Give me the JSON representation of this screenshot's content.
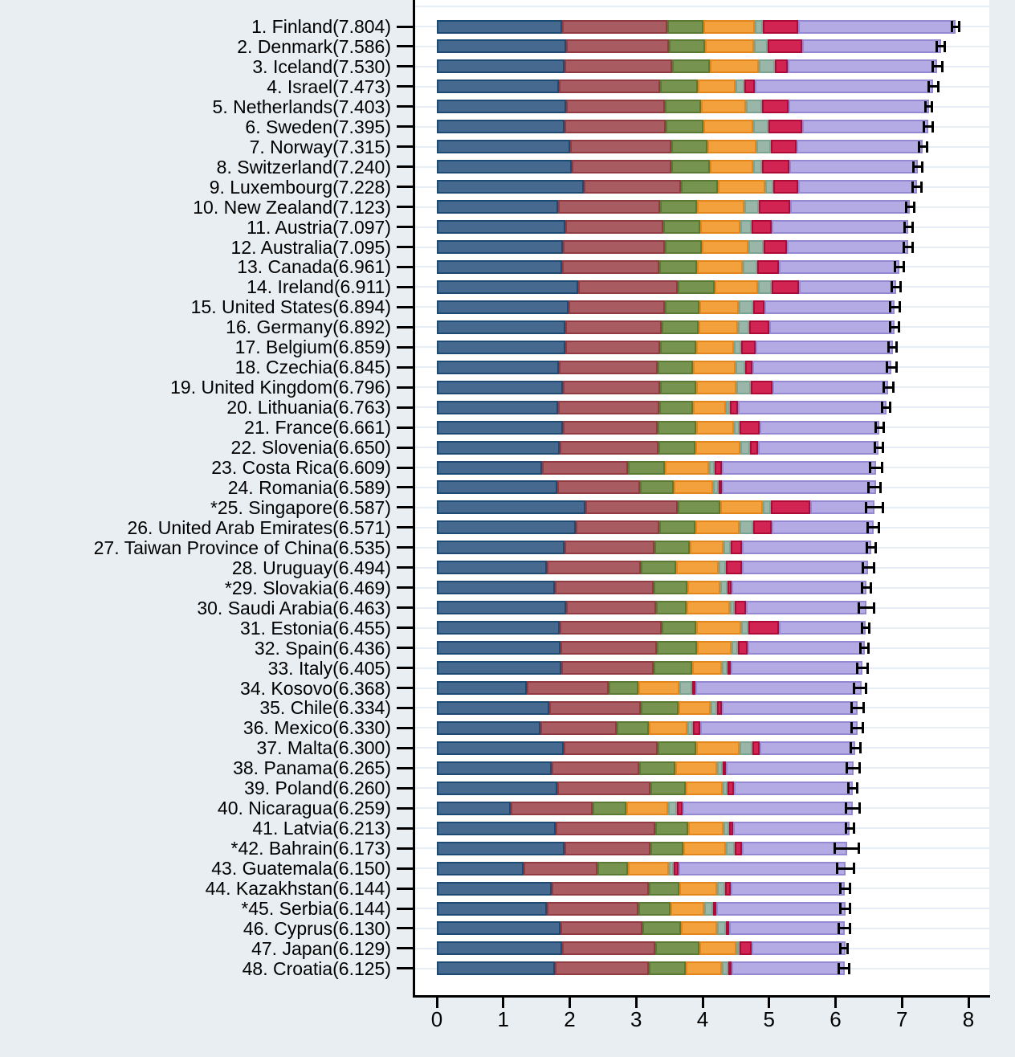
{
  "chart_data": {
    "type": "bar",
    "orientation": "horizontal",
    "stacked": true,
    "title": "",
    "xlabel": "",
    "ylabel": "",
    "xlim": [
      0,
      8.3
    ],
    "x_ticks": [
      "0",
      "1",
      "2",
      "3",
      "4",
      "5",
      "6",
      "7",
      "8"
    ],
    "x_tick_values": [
      0,
      1,
      2,
      3,
      4,
      5,
      6,
      7,
      8
    ],
    "grid": "horizontal-light",
    "legend_position": "none",
    "error_bars": true,
    "series": [
      {
        "name": "segment-navy",
        "fill": "#46698f",
        "border": "#1c4a72"
      },
      {
        "name": "segment-maroon",
        "fill": "#a85b61",
        "border": "#913a42"
      },
      {
        "name": "segment-green",
        "fill": "#76934f",
        "border": "#5a7a33"
      },
      {
        "name": "segment-orange",
        "fill": "#f3a13d",
        "border": "#e2861c"
      },
      {
        "name": "segment-teal",
        "fill": "#9ab6a9",
        "border": "#7ba391"
      },
      {
        "name": "segment-crimson",
        "fill": "#d22453",
        "border": "#ad0a38"
      },
      {
        "name": "segment-lavender",
        "fill": "#b5abe4",
        "border": "#9488d2"
      }
    ],
    "countries": [
      {
        "label": "1. Finland(7.804)",
        "score": 7.804,
        "values": [
          1.888,
          1.585,
          0.535,
          0.772,
          0.126,
          0.535,
          2.363
        ],
        "ci_halfwidth": 0.075
      },
      {
        "label": "2. Denmark(7.586)",
        "score": 7.586,
        "values": [
          1.949,
          1.548,
          0.537,
          0.734,
          0.208,
          0.525,
          2.085
        ],
        "ci_halfwidth": 0.08
      },
      {
        "label": "3. Iceland(7.530)",
        "score": 7.53,
        "values": [
          1.926,
          1.62,
          0.559,
          0.738,
          0.25,
          0.187,
          2.25
        ],
        "ci_halfwidth": 0.09
      },
      {
        "label": "4. Israel(7.473)",
        "score": 7.473,
        "values": [
          1.833,
          1.521,
          0.577,
          0.569,
          0.124,
          0.158,
          2.691
        ],
        "ci_halfwidth": 0.09
      },
      {
        "label": "5. Netherlands(7.403)",
        "score": 7.403,
        "values": [
          1.942,
          1.488,
          0.545,
          0.672,
          0.251,
          0.394,
          2.111
        ],
        "ci_halfwidth": 0.065
      },
      {
        "label": "6. Sweden(7.395)",
        "score": 7.395,
        "values": [
          1.921,
          1.528,
          0.562,
          0.754,
          0.221,
          0.512,
          1.897
        ],
        "ci_halfwidth": 0.08
      },
      {
        "label": "7. Norway(7.315)",
        "score": 7.315,
        "values": [
          2.011,
          1.513,
          0.549,
          0.734,
          0.217,
          0.394,
          1.897
        ],
        "ci_halfwidth": 0.08
      },
      {
        "label": "8. Switzerland(7.240)",
        "score": 7.24,
        "values": [
          2.025,
          1.5,
          0.581,
          0.654,
          0.137,
          0.408,
          1.935
        ],
        "ci_halfwidth": 0.08
      },
      {
        "label": "9. Luxembourg(7.228)",
        "score": 7.228,
        "values": [
          2.209,
          1.459,
          0.566,
          0.703,
          0.127,
          0.379,
          1.785
        ],
        "ci_halfwidth": 0.085
      },
      {
        "label": "10. New Zealand(7.123)",
        "score": 7.123,
        "values": [
          1.825,
          1.537,
          0.554,
          0.713,
          0.217,
          0.471,
          1.806
        ],
        "ci_halfwidth": 0.08
      },
      {
        "label": "11. Austria(7.097)",
        "score": 7.097,
        "values": [
          1.931,
          1.472,
          0.56,
          0.605,
          0.172,
          0.301,
          2.056
        ],
        "ci_halfwidth": 0.08
      },
      {
        "label": "12. Australia(7.095)",
        "score": 7.095,
        "values": [
          1.9,
          1.527,
          0.567,
          0.695,
          0.236,
          0.342,
          1.828
        ],
        "ci_halfwidth": 0.08
      },
      {
        "label": "13. Canada(6.961)",
        "score": 6.961,
        "values": [
          1.883,
          1.46,
          0.576,
          0.68,
          0.222,
          0.33,
          1.81
        ],
        "ci_halfwidth": 0.085
      },
      {
        "label": "14. Ireland(6.911)",
        "score": 6.911,
        "values": [
          2.129,
          1.492,
          0.564,
          0.646,
          0.21,
          0.408,
          1.462
        ],
        "ci_halfwidth": 0.085
      },
      {
        "label": "15. United States(6.894)",
        "score": 6.894,
        "values": [
          1.982,
          1.453,
          0.513,
          0.596,
          0.223,
          0.169,
          1.958
        ],
        "ci_halfwidth": 0.095
      },
      {
        "label": "16. Germany(6.892)",
        "score": 6.892,
        "values": [
          1.938,
          1.445,
          0.552,
          0.592,
          0.17,
          0.311,
          1.884
        ],
        "ci_halfwidth": 0.085
      },
      {
        "label": "17. Belgium(6.859)",
        "score": 6.859,
        "values": [
          1.935,
          1.421,
          0.55,
          0.568,
          0.105,
          0.219,
          2.061
        ],
        "ci_halfwidth": 0.08
      },
      {
        "label": "18. Czechia(6.845)",
        "score": 6.845,
        "values": [
          1.833,
          1.486,
          0.531,
          0.646,
          0.139,
          0.114,
          2.096
        ],
        "ci_halfwidth": 0.09
      },
      {
        "label": "19. United Kingdom(6.796)",
        "score": 6.796,
        "values": [
          1.9,
          1.454,
          0.546,
          0.608,
          0.221,
          0.322,
          1.745
        ],
        "ci_halfwidth": 0.09
      },
      {
        "label": "20. Lithuania(6.763)",
        "score": 6.763,
        "values": [
          1.829,
          1.521,
          0.501,
          0.497,
          0.068,
          0.118,
          2.229
        ],
        "ci_halfwidth": 0.075
      },
      {
        "label": "21. France(6.661)",
        "score": 6.661,
        "values": [
          1.896,
          1.429,
          0.577,
          0.573,
          0.086,
          0.303,
          1.797
        ],
        "ci_halfwidth": 0.08
      },
      {
        "label": "22. Slovenia(6.650)",
        "score": 6.65,
        "values": [
          1.845,
          1.496,
          0.556,
          0.67,
          0.141,
          0.13,
          1.812
        ],
        "ci_halfwidth": 0.08
      },
      {
        "label": "23. Costa Rica(6.609)",
        "score": 6.609,
        "values": [
          1.582,
          1.293,
          0.558,
          0.66,
          0.093,
          0.102,
          2.321
        ],
        "ci_halfwidth": 0.105
      },
      {
        "label": "24. Romania(6.589)",
        "score": 6.589,
        "values": [
          1.807,
          1.252,
          0.501,
          0.602,
          0.081,
          0.03,
          2.316
        ],
        "ci_halfwidth": 0.11
      },
      {
        "label": "*25. Singapore(6.587)",
        "score": 6.587,
        "values": [
          2.238,
          1.382,
          0.648,
          0.64,
          0.115,
          0.6,
          0.964
        ],
        "ci_halfwidth": 0.14
      },
      {
        "label": "26. United Arab Emirates(6.571)",
        "score": 6.571,
        "values": [
          2.089,
          1.258,
          0.545,
          0.661,
          0.206,
          0.281,
          1.531
        ],
        "ci_halfwidth": 0.1
      },
      {
        "label": "27. Taiwan Province of China(6.535)",
        "score": 6.535,
        "values": [
          1.923,
          1.349,
          0.536,
          0.51,
          0.109,
          0.161,
          1.947
        ],
        "ci_halfwidth": 0.085
      },
      {
        "label": "28. Uruguay(6.494)",
        "score": 6.494,
        "values": [
          1.661,
          1.407,
          0.528,
          0.646,
          0.103,
          0.243,
          1.906
        ],
        "ci_halfwidth": 0.105
      },
      {
        "label": "*29. Slovakia(6.469)",
        "score": 6.469,
        "values": [
          1.78,
          1.48,
          0.509,
          0.502,
          0.098,
          0.065,
          2.035
        ],
        "ci_halfwidth": 0.085
      },
      {
        "label": "30. Saudi Arabia(6.463)",
        "score": 6.463,
        "values": [
          1.947,
          1.355,
          0.461,
          0.644,
          0.079,
          0.161,
          1.816
        ],
        "ci_halfwidth": 0.135
      },
      {
        "label": "31. Estonia(6.455)",
        "score": 6.455,
        "values": [
          1.85,
          1.53,
          0.525,
          0.677,
          0.103,
          0.468,
          1.302
        ],
        "ci_halfwidth": 0.075
      },
      {
        "label": "32. Spain(6.436)",
        "score": 6.436,
        "values": [
          1.857,
          1.46,
          0.603,
          0.519,
          0.088,
          0.147,
          1.762
        ],
        "ci_halfwidth": 0.075
      },
      {
        "label": "33. Italy(6.405)",
        "score": 6.405,
        "values": [
          1.874,
          1.384,
          0.584,
          0.445,
          0.085,
          0.044,
          1.989
        ],
        "ci_halfwidth": 0.095
      },
      {
        "label": "34. Kosovo(6.368)",
        "score": 6.368,
        "values": [
          1.357,
          1.227,
          0.451,
          0.616,
          0.195,
          0.019,
          2.503
        ],
        "ci_halfwidth": 0.105
      },
      {
        "label": "35. Chile(6.334)",
        "score": 6.334,
        "values": [
          1.697,
          1.378,
          0.558,
          0.492,
          0.096,
          0.069,
          2.044
        ],
        "ci_halfwidth": 0.105
      },
      {
        "label": "36. Mexico(6.330)",
        "score": 6.33,
        "values": [
          1.558,
          1.15,
          0.483,
          0.584,
          0.079,
          0.112,
          2.364
        ],
        "ci_halfwidth": 0.105
      },
      {
        "label": "37. Malta(6.300)",
        "score": 6.3,
        "values": [
          1.904,
          1.424,
          0.575,
          0.658,
          0.19,
          0.112,
          1.437
        ],
        "ci_halfwidth": 0.09
      },
      {
        "label": "38. Panama(6.265)",
        "score": 6.265,
        "values": [
          1.727,
          1.321,
          0.536,
          0.631,
          0.082,
          0.04,
          1.928
        ],
        "ci_halfwidth": 0.11
      },
      {
        "label": "39. Poland(6.260)",
        "score": 6.26,
        "values": [
          1.815,
          1.402,
          0.535,
          0.548,
          0.08,
          0.092,
          1.788
        ],
        "ci_halfwidth": 0.09
      },
      {
        "label": "40. Nicaragua(6.259)",
        "score": 6.259,
        "values": [
          1.106,
          1.233,
          0.51,
          0.629,
          0.133,
          0.09,
          2.558
        ],
        "ci_halfwidth": 0.12
      },
      {
        "label": "41. Latvia(6.213)",
        "score": 6.213,
        "values": [
          1.791,
          1.497,
          0.499,
          0.522,
          0.094,
          0.06,
          1.75
        ],
        "ci_halfwidth": 0.08
      },
      {
        "label": "*42. Bahrain(6.173)",
        "score": 6.173,
        "values": [
          1.92,
          1.291,
          0.502,
          0.632,
          0.134,
          0.111,
          1.583
        ],
        "ci_halfwidth": 0.2
      },
      {
        "label": "43. Guatemala(6.150)",
        "score": 6.15,
        "values": [
          1.31,
          1.111,
          0.458,
          0.617,
          0.069,
          0.073,
          2.512
        ],
        "ci_halfwidth": 0.15
      },
      {
        "label": "44. Kazakhstan(6.144)",
        "score": 6.144,
        "values": [
          1.73,
          1.457,
          0.463,
          0.572,
          0.122,
          0.074,
          1.726
        ],
        "ci_halfwidth": 0.095
      },
      {
        "label": "*45. Serbia(6.144)",
        "score": 6.144,
        "values": [
          1.661,
          1.37,
          0.489,
          0.505,
          0.136,
          0.046,
          1.937
        ],
        "ci_halfwidth": 0.09
      },
      {
        "label": "46. Cyprus(6.130)",
        "score": 6.13,
        "values": [
          1.858,
          1.232,
          0.587,
          0.543,
          0.126,
          0.041,
          1.743
        ],
        "ci_halfwidth": 0.105
      },
      {
        "label": "47. Japan(6.129)",
        "score": 6.129,
        "values": [
          1.888,
          1.4,
          0.669,
          0.549,
          0.031,
          0.188,
          1.404
        ],
        "ci_halfwidth": 0.07
      },
      {
        "label": "48. Croatia(6.125)",
        "score": 6.125,
        "values": [
          1.776,
          1.418,
          0.554,
          0.545,
          0.089,
          0.028,
          1.715
        ],
        "ci_halfwidth": 0.095
      }
    ],
    "colors": {
      "page_background": "#e8eef2",
      "plot_background": "#ffffff",
      "gridline": "#e6edf5",
      "axis": "#000000",
      "error_bar": "#000000"
    }
  }
}
